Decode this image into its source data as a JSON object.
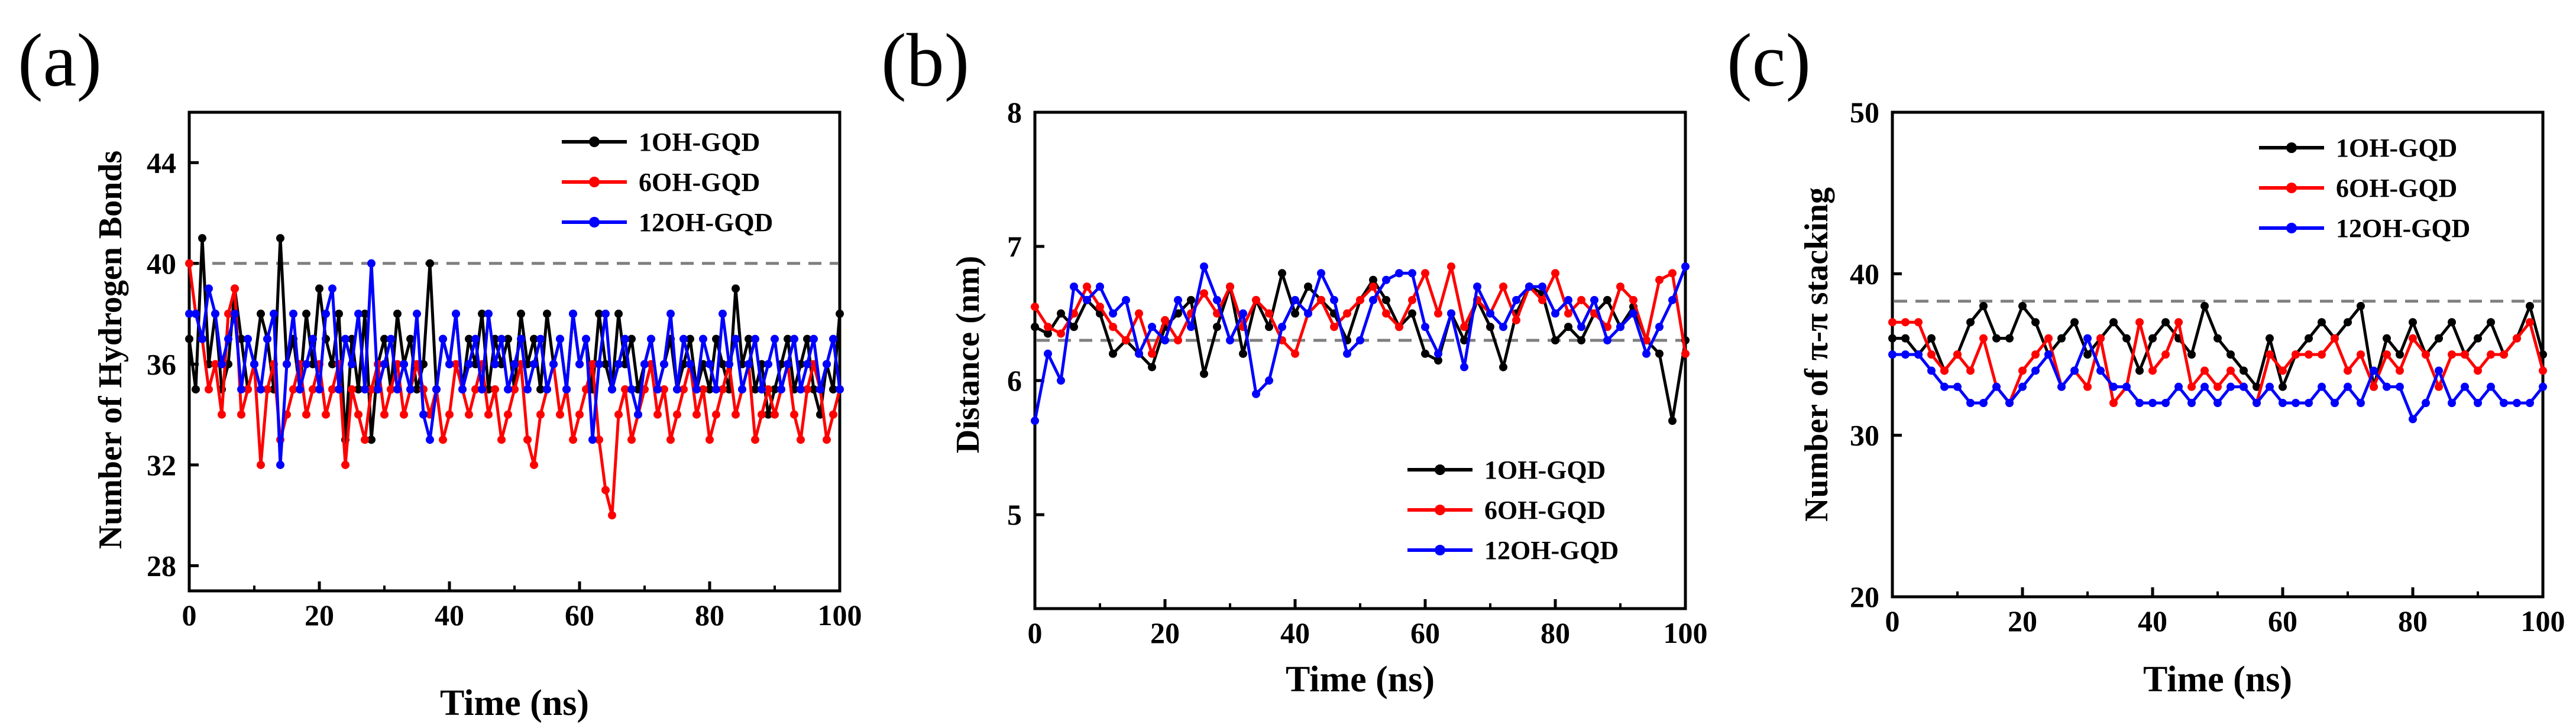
{
  "chart_data": [
    {
      "type": "line",
      "panel_label": "(a)",
      "xlabel": "Time (ns)",
      "ylabel": "Number of Hydrogen Bonds",
      "xlim": [
        0,
        100
      ],
      "ylim": [
        27,
        46
      ],
      "xticks": [
        0,
        20,
        40,
        60,
        80,
        100
      ],
      "yticks": [
        28,
        32,
        36,
        40,
        44
      ],
      "reference_line": 40,
      "legend_position": "top-right",
      "x": [
        0,
        1,
        2,
        3,
        4,
        5,
        6,
        7,
        8,
        9,
        10,
        11,
        12,
        13,
        14,
        15,
        16,
        17,
        18,
        19,
        20,
        21,
        22,
        23,
        24,
        25,
        26,
        27,
        28,
        29,
        30,
        31,
        32,
        33,
        34,
        35,
        36,
        37,
        38,
        39,
        40,
        41,
        42,
        43,
        44,
        45,
        46,
        47,
        48,
        49,
        50,
        51,
        52,
        53,
        54,
        55,
        56,
        57,
        58,
        59,
        60,
        61,
        62,
        63,
        64,
        65,
        66,
        67,
        68,
        69,
        70,
        71,
        72,
        73,
        74,
        75,
        76,
        77,
        78,
        79,
        80,
        81,
        82,
        83,
        84,
        85,
        86,
        87,
        88,
        89,
        90,
        91,
        92,
        93,
        94,
        95,
        96,
        97,
        98,
        99,
        100
      ],
      "series": [
        {
          "name": "1OH-GQD",
          "color": "#000000",
          "values": [
            37,
            35,
            41,
            36,
            38,
            35,
            36,
            39,
            37,
            35,
            36,
            38,
            37,
            35,
            41,
            36,
            37,
            35,
            38,
            36,
            39,
            37,
            36,
            38,
            33,
            37,
            35,
            38,
            33,
            36,
            37,
            35,
            38,
            36,
            37,
            35,
            36,
            40,
            35,
            37,
            36,
            38,
            35,
            37,
            36,
            38,
            35,
            37,
            36,
            37,
            35,
            38,
            36,
            37,
            35,
            38,
            36,
            37,
            35,
            38,
            36,
            37,
            35,
            38,
            36,
            35,
            38,
            36,
            37,
            35,
            36,
            37,
            35,
            36,
            37,
            35,
            36,
            37,
            35,
            36,
            35,
            37,
            36,
            35,
            39,
            36,
            37,
            35,
            36,
            34,
            35,
            36,
            37,
            35,
            36,
            37,
            35,
            34,
            36,
            35,
            38
          ]
        },
        {
          "name": "6OH-GQD",
          "color": "#ff0000",
          "values": [
            40,
            38,
            37,
            35,
            36,
            34,
            38,
            39,
            34,
            35,
            36,
            32,
            35,
            36,
            33,
            34,
            35,
            36,
            34,
            35,
            36,
            34,
            35,
            36,
            32,
            35,
            34,
            33,
            35,
            36,
            34,
            35,
            36,
            34,
            35,
            36,
            35,
            34,
            35,
            33,
            34,
            36,
            35,
            34,
            35,
            36,
            34,
            35,
            33,
            34,
            35,
            36,
            33,
            32,
            34,
            35,
            36,
            34,
            35,
            33,
            34,
            35,
            36,
            33,
            31,
            30,
            34,
            35,
            33,
            34,
            35,
            36,
            34,
            35,
            33,
            34,
            35,
            36,
            34,
            35,
            33,
            34,
            35,
            36,
            34,
            35,
            36,
            33,
            34,
            35,
            34,
            35,
            36,
            34,
            33,
            35,
            36,
            35,
            33,
            34,
            35
          ]
        },
        {
          "name": "12OH-GQD",
          "color": "#0000ff",
          "values": [
            38,
            38,
            37,
            39,
            38,
            36,
            37,
            38,
            35,
            37,
            36,
            35,
            37,
            38,
            32,
            36,
            38,
            35,
            36,
            37,
            35,
            38,
            39,
            35,
            37,
            36,
            38,
            35,
            40,
            35,
            36,
            37,
            35,
            36,
            35,
            38,
            34,
            33,
            35,
            37,
            36,
            38,
            35,
            36,
            37,
            35,
            38,
            36,
            37,
            35,
            36,
            37,
            35,
            36,
            37,
            35,
            36,
            37,
            35,
            38,
            36,
            37,
            33,
            36,
            38,
            35,
            36,
            37,
            35,
            34,
            36,
            37,
            35,
            36,
            38,
            35,
            37,
            36,
            35,
            37,
            36,
            35,
            38,
            36,
            37,
            35,
            36,
            37,
            35,
            36,
            37,
            35,
            36,
            37,
            35,
            36,
            37,
            35,
            36,
            37,
            35
          ]
        }
      ]
    },
    {
      "type": "line",
      "panel_label": "(b)",
      "xlabel": "Time (ns)",
      "ylabel": "Distance (nm)",
      "xlim": [
        0,
        100
      ],
      "ylim": [
        4.3,
        8
      ],
      "xticks": [
        0,
        20,
        40,
        60,
        80,
        100
      ],
      "yticks": [
        5,
        6,
        7,
        8
      ],
      "reference_line": 6.3,
      "legend_position": "bottom-right",
      "x": [
        0,
        2,
        4,
        6,
        8,
        10,
        12,
        14,
        16,
        18,
        20,
        22,
        24,
        26,
        28,
        30,
        32,
        34,
        36,
        38,
        40,
        42,
        44,
        46,
        48,
        50,
        52,
        54,
        56,
        58,
        60,
        62,
        64,
        66,
        68,
        70,
        72,
        74,
        76,
        78,
        80,
        82,
        84,
        86,
        88,
        90,
        92,
        94,
        96,
        98,
        100
      ],
      "series": [
        {
          "name": "1OH-GQD",
          "color": "#000000",
          "values": [
            6.4,
            6.35,
            6.5,
            6.4,
            6.6,
            6.5,
            6.2,
            6.3,
            6.2,
            6.1,
            6.4,
            6.5,
            6.6,
            6.05,
            6.4,
            6.7,
            6.2,
            6.6,
            6.4,
            6.8,
            6.5,
            6.7,
            6.6,
            6.5,
            6.3,
            6.6,
            6.75,
            6.6,
            6.4,
            6.5,
            6.2,
            6.15,
            6.5,
            6.3,
            6.6,
            6.4,
            6.1,
            6.5,
            6.7,
            6.65,
            6.3,
            6.4,
            6.3,
            6.5,
            6.6,
            6.4,
            6.55,
            6.3,
            6.2,
            5.7,
            6.3
          ]
        },
        {
          "name": "6OH-GQD",
          "color": "#ff0000",
          "values": [
            6.55,
            6.4,
            6.35,
            6.5,
            6.7,
            6.55,
            6.4,
            6.3,
            6.5,
            6.2,
            6.45,
            6.3,
            6.5,
            6.65,
            6.5,
            6.7,
            6.4,
            6.6,
            6.5,
            6.3,
            6.2,
            6.5,
            6.6,
            6.4,
            6.5,
            6.6,
            6.7,
            6.5,
            6.4,
            6.6,
            6.8,
            6.5,
            6.85,
            6.4,
            6.6,
            6.5,
            6.7,
            6.45,
            6.7,
            6.6,
            6.8,
            6.5,
            6.6,
            6.5,
            6.4,
            6.7,
            6.6,
            6.3,
            6.75,
            6.8,
            6.2
          ]
        },
        {
          "name": "12OH-GQD",
          "color": "#0000ff",
          "values": [
            5.7,
            6.2,
            6.0,
            6.7,
            6.6,
            6.7,
            6.5,
            6.6,
            6.2,
            6.4,
            6.3,
            6.6,
            6.4,
            6.85,
            6.6,
            6.3,
            6.5,
            5.9,
            6.0,
            6.4,
            6.6,
            6.5,
            6.8,
            6.6,
            6.2,
            6.3,
            6.6,
            6.75,
            6.8,
            6.8,
            6.4,
            6.2,
            6.5,
            6.1,
            6.7,
            6.5,
            6.4,
            6.6,
            6.7,
            6.7,
            6.5,
            6.6,
            6.4,
            6.6,
            6.3,
            6.4,
            6.5,
            6.2,
            6.4,
            6.6,
            6.85
          ]
        }
      ]
    },
    {
      "type": "line",
      "panel_label": "(c)",
      "xlabel": "Time (ns)",
      "ylabel": "Number of π-π stacking",
      "xlim": [
        0,
        100
      ],
      "ylim": [
        20,
        50
      ],
      "xticks": [
        0,
        20,
        40,
        60,
        80,
        100
      ],
      "yticks": [
        20,
        30,
        40,
        50
      ],
      "reference_line": 38.3,
      "legend_position": "top-right",
      "x": [
        0,
        2,
        4,
        6,
        8,
        10,
        12,
        14,
        16,
        18,
        20,
        22,
        24,
        26,
        28,
        30,
        32,
        34,
        36,
        38,
        40,
        42,
        44,
        46,
        48,
        50,
        52,
        54,
        56,
        58,
        60,
        62,
        64,
        66,
        68,
        70,
        72,
        74,
        76,
        78,
        80,
        82,
        84,
        86,
        88,
        90,
        92,
        94,
        96,
        98,
        100
      ],
      "series": [
        {
          "name": "1OH-GQD",
          "color": "#000000",
          "values": [
            36,
            36,
            35,
            36,
            34,
            35,
            37,
            38,
            36,
            36,
            38,
            37,
            35,
            36,
            37,
            35,
            36,
            37,
            36,
            34,
            36,
            37,
            36,
            35,
            38,
            36,
            35,
            34,
            33,
            36,
            33,
            35,
            36,
            37,
            36,
            37,
            38,
            33,
            36,
            35,
            37,
            35,
            36,
            37,
            35,
            36,
            37,
            35,
            36,
            38,
            35
          ]
        },
        {
          "name": "6OH-GQD",
          "color": "#ff0000",
          "values": [
            37,
            37,
            37,
            35,
            34,
            35,
            34,
            36,
            33,
            32,
            34,
            35,
            36,
            33,
            34,
            33,
            36,
            32,
            33,
            37,
            34,
            35,
            37,
            33,
            34,
            33,
            34,
            33,
            32,
            35,
            34,
            35,
            35,
            35,
            36,
            34,
            35,
            33,
            35,
            34,
            36,
            35,
            33,
            35,
            35,
            34,
            35,
            35,
            36,
            37,
            34
          ]
        },
        {
          "name": "12OH-GQD",
          "color": "#0000ff",
          "values": [
            35,
            35,
            35,
            34,
            33,
            33,
            32,
            32,
            33,
            32,
            33,
            34,
            35,
            33,
            34,
            36,
            34,
            33,
            33,
            32,
            32,
            32,
            33,
            32,
            33,
            32,
            33,
            33,
            32,
            33,
            32,
            32,
            32,
            33,
            32,
            33,
            32,
            34,
            33,
            33,
            31,
            32,
            34,
            32,
            33,
            32,
            33,
            32,
            32,
            32,
            33
          ]
        }
      ]
    }
  ]
}
